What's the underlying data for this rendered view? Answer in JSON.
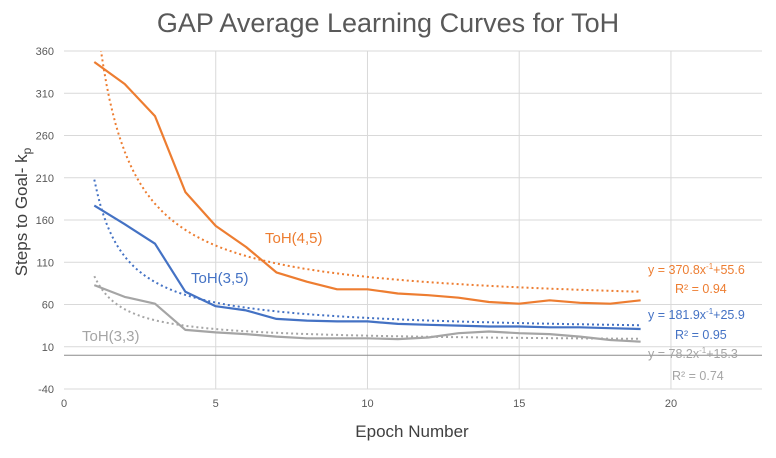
{
  "chart_data": {
    "type": "line",
    "title": "GAP Average Learning Curves for ToH",
    "xlabel": "Epoch Number",
    "ylabel_main": "Steps to Goal- k",
    "ylabel_sub": "p",
    "xlim": [
      0,
      23
    ],
    "ylim": [
      -40,
      360
    ],
    "xticks": [
      0,
      5,
      10,
      15,
      20
    ],
    "yticks": [
      -40,
      10,
      60,
      110,
      160,
      210,
      260,
      310,
      360
    ],
    "series": [
      {
        "name": "ToH(4,5)",
        "color": "#ED7D31",
        "x": [
          1,
          2,
          3,
          4,
          5,
          6,
          7,
          8,
          9,
          10,
          11,
          12,
          13,
          14,
          15,
          16,
          17,
          18,
          19
        ],
        "values": [
          347,
          321,
          283,
          193,
          153,
          128,
          98,
          87,
          78,
          78,
          73,
          71,
          68,
          63,
          61,
          65,
          62,
          61,
          65
        ],
        "trend": {
          "a": 370.8,
          "b": 55.6,
          "r2": "0.94",
          "equation": "y = 370.8x",
          "eq_rest": "+55.6",
          "r2_label": "R² = 0.94"
        }
      },
      {
        "name": "ToH(3,5)",
        "color": "#4472C4",
        "x": [
          1,
          2,
          3,
          4,
          5,
          6,
          7,
          8,
          9,
          10,
          11,
          12,
          13,
          14,
          15,
          16,
          17,
          18,
          19
        ],
        "values": [
          177,
          155,
          132,
          75,
          58,
          53,
          43,
          41,
          40,
          40,
          37,
          36,
          35,
          34,
          34,
          33,
          33,
          32,
          31
        ],
        "trend": {
          "a": 181.9,
          "b": 25.9,
          "r2": "0.95",
          "equation": "y = 181.9x",
          "eq_rest": "+25.9",
          "r2_label": "R² = 0.95"
        }
      },
      {
        "name": "ToH(3,3)",
        "color": "#A5A5A5",
        "x": [
          1,
          2,
          3,
          4,
          5,
          6,
          7,
          8,
          9,
          10,
          11,
          12,
          13,
          14,
          15,
          16,
          17,
          18,
          19
        ],
        "values": [
          83,
          69,
          61,
          30,
          27,
          25,
          22,
          20,
          20,
          20,
          19,
          21,
          26,
          28,
          26,
          25,
          22,
          18,
          16
        ],
        "trend": {
          "a": 78.2,
          "b": 15.3,
          "r2": "0.74",
          "equation": "y = 78.2x",
          "eq_rest": "+15.3",
          "r2_label": "R² = 0.74"
        }
      }
    ],
    "superscript": "-1"
  }
}
